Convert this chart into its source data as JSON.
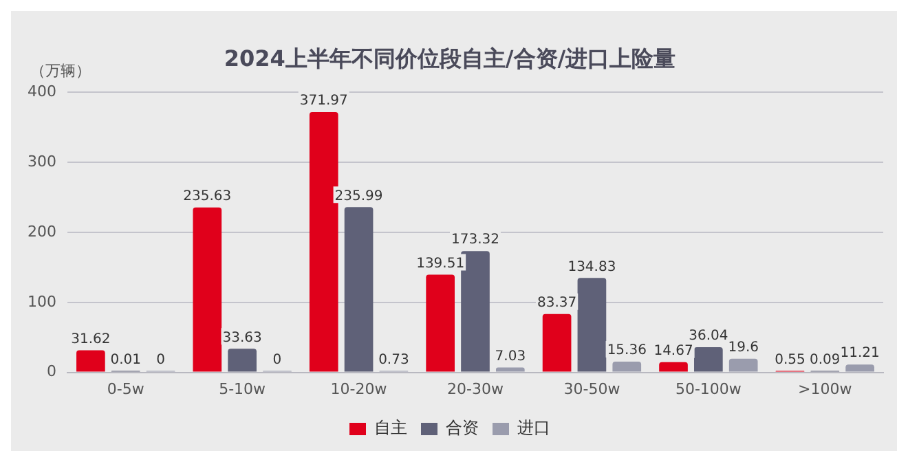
{
  "chart_data": {
    "type": "bar",
    "title": "2024上半年不同价位段自主/合资/进口上险量",
    "ylabel": "（万辆）",
    "categories": [
      "0-5w",
      "5-10w",
      "10-20w",
      "20-30w",
      "30-50w",
      "50-100w",
      ">100w"
    ],
    "series": [
      {
        "name": "自主",
        "color": "#e0001b",
        "values": [
          31.62,
          235.63,
          371.97,
          139.51,
          83.37,
          14.67,
          0.55
        ]
      },
      {
        "name": "合资",
        "color": "#5f6178",
        "values": [
          0.01,
          33.63,
          235.99,
          173.32,
          134.83,
          36.04,
          0.09
        ]
      },
      {
        "name": "进口",
        "color": "#9a9cad",
        "values": [
          0,
          0,
          0.73,
          7.03,
          15.36,
          19.6,
          11.21
        ]
      }
    ],
    "ylim": [
      0,
      400
    ],
    "yticks": [
      0,
      100,
      200,
      300,
      400
    ],
    "grid": "y",
    "legend": "bottom",
    "data_labels": true
  }
}
